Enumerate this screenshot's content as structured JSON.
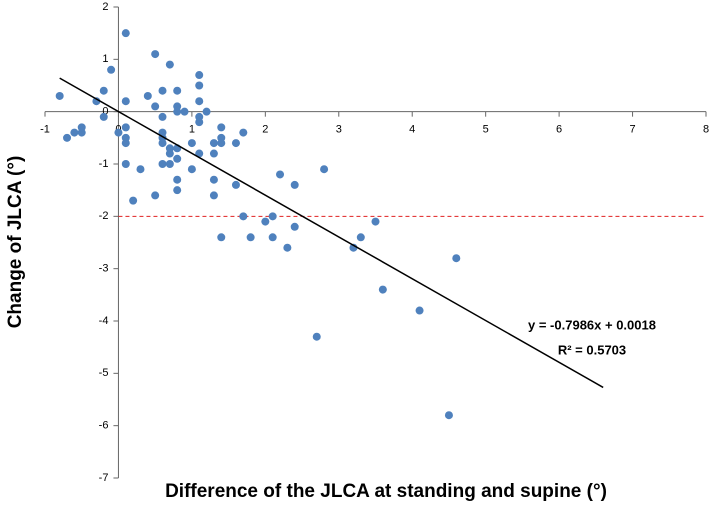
{
  "chart_data": {
    "type": "scatter",
    "xlabel": "Difference of the JLCA at standing and supine (°)",
    "ylabel": "Change of JLCA (°)",
    "xlim": [
      -1,
      8
    ],
    "ylim": [
      -7,
      2
    ],
    "xticks": [
      -1,
      0,
      1,
      2,
      3,
      4,
      5,
      6,
      7,
      8
    ],
    "yticks": [
      2,
      1,
      0,
      -1,
      -2,
      -3,
      -4,
      -5,
      -6,
      -7
    ],
    "color": "#4f81bd",
    "x": [
      -0.8,
      -0.7,
      -0.6,
      -0.5,
      -0.5,
      -0.3,
      -0.2,
      -0.2,
      -0.1,
      0,
      0.1,
      0.1,
      0.1,
      0.1,
      0.1,
      0.1,
      0.2,
      0.3,
      0.4,
      0.5,
      0.5,
      0.5,
      0.6,
      0.6,
      0.6,
      0.6,
      0.6,
      0.6,
      0.7,
      0.7,
      0.7,
      0.7,
      0.8,
      0.8,
      0.8,
      0.8,
      0.8,
      0.8,
      0.8,
      0.9,
      1.0,
      1.0,
      1.1,
      1.1,
      1.1,
      1.1,
      1.1,
      1.1,
      1.2,
      1.3,
      1.3,
      1.3,
      1.3,
      1.4,
      1.4,
      1.4,
      1.4,
      1.6,
      1.6,
      1.7,
      1.7,
      1.8,
      2.0,
      2.1,
      2.1,
      2.2,
      2.3,
      2.4,
      2.4,
      2.7,
      2.8,
      3.2,
      3.3,
      3.5,
      3.6,
      4.1,
      4.5,
      4.6
    ],
    "values": [
      0.3,
      -0.5,
      -0.4,
      -0.4,
      -0.3,
      0.2,
      0.4,
      -0.1,
      0.8,
      -0.4,
      1.5,
      0.2,
      -0.3,
      -0.5,
      -0.6,
      -1.0,
      -1.7,
      -1.1,
      0.3,
      1.1,
      0.1,
      -1.6,
      0.4,
      -0.1,
      -0.4,
      -0.5,
      -0.6,
      -1.0,
      0.9,
      -0.7,
      -0.8,
      -1.0,
      0.4,
      0.1,
      0,
      -0.7,
      -0.9,
      -1.3,
      -1.5,
      0,
      -0.6,
      -1.1,
      0.7,
      0.5,
      0.2,
      -0.1,
      -0.2,
      -0.8,
      0,
      -0.6,
      -0.8,
      -1.3,
      -1.6,
      -0.3,
      -0.5,
      -0.6,
      -2.4,
      -0.6,
      -1.4,
      -0.4,
      -2.0,
      -2.4,
      -2.1,
      -2.0,
      -2.4,
      -1.2,
      -2.6,
      -1.4,
      -2.2,
      -4.3,
      -1.1,
      -2.6,
      -2.4,
      -2.1,
      -3.4,
      -3.8,
      -5.8,
      -2.8
    ],
    "trendline": {
      "x": [
        -0.8,
        6.6
      ],
      "y": [
        0.6407,
        -5.269
      ],
      "color": "#000000"
    },
    "hline": {
      "value": -2,
      "color": "#e02020"
    },
    "annotations": [
      "y = -0.7986x + 0.0018",
      "R² = 0.5703"
    ]
  }
}
